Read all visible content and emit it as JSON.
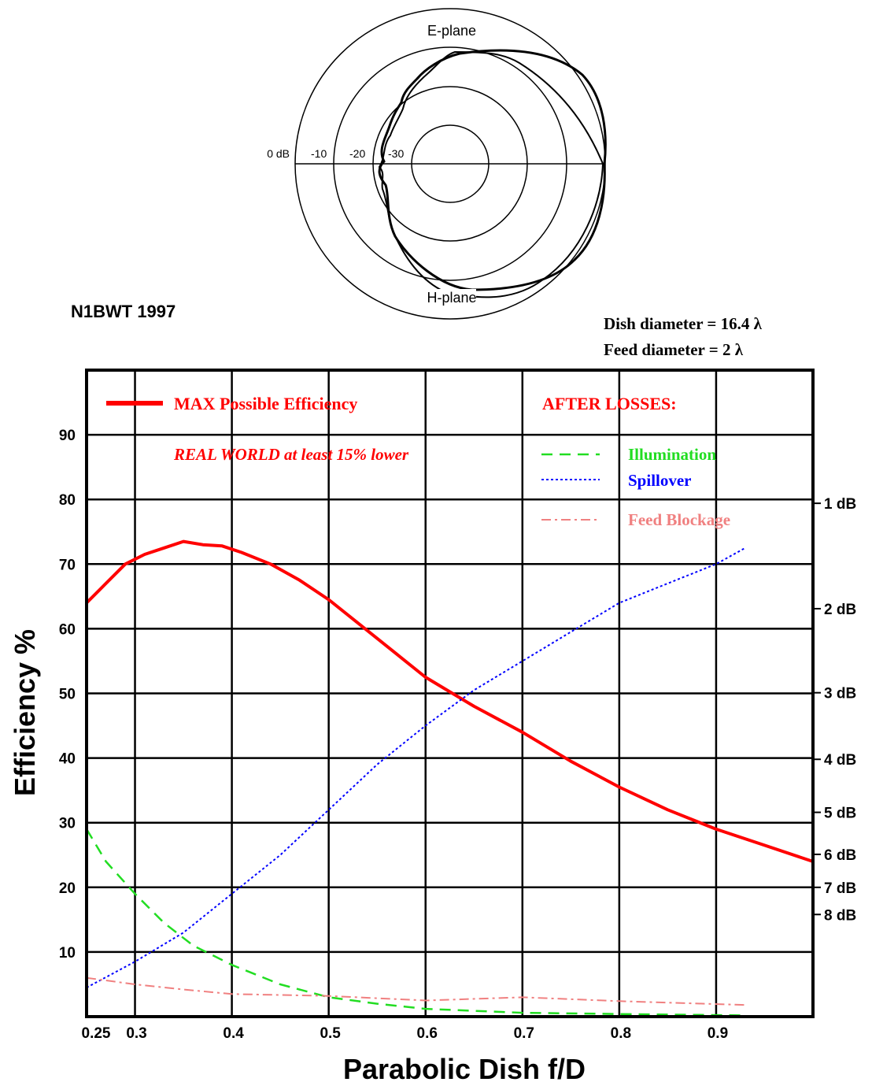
{
  "polar": {
    "e_plane_label": "E-plane",
    "h_plane_label": "H-plane",
    "ring_labels": [
      "0 dB",
      "-10",
      "-20",
      "-30"
    ]
  },
  "credit": "N1BWT 1997",
  "dish_diameter": "Dish diameter = 16.4 λ",
  "feed_diameter": "Feed diameter = 2 λ",
  "legend": {
    "max_label": "MAX Possible Efficiency",
    "real_world_note": "REAL WORLD at least 15% lower",
    "after_losses": "AFTER LOSSES:",
    "illumination": "Illumination",
    "spillover": "Spillover",
    "feed_blockage": "Feed Blockage"
  },
  "colors": {
    "max": "#ff0000",
    "illumination": "#22dd22",
    "spillover": "#0000ff",
    "feed_blockage": "#f08080",
    "grid": "#000000"
  },
  "chart_data": {
    "type": "line",
    "xlabel": "Parabolic Dish f/D",
    "ylabel": "Efficiency %",
    "xlim": [
      0.25,
      1.0
    ],
    "ylim": [
      0,
      100
    ],
    "x_ticks": [
      {
        "v": 0.25,
        "label": "0.25"
      },
      {
        "v": 0.3,
        "label": "0.3"
      },
      {
        "v": 0.4,
        "label": "0.4"
      },
      {
        "v": 0.5,
        "label": "0.5"
      },
      {
        "v": 0.6,
        "label": "0.6"
      },
      {
        "v": 0.7,
        "label": "0.7"
      },
      {
        "v": 0.8,
        "label": "0.8"
      },
      {
        "v": 0.9,
        "label": "0.9"
      }
    ],
    "y_ticks": [
      10,
      20,
      30,
      40,
      50,
      60,
      70,
      80,
      90
    ],
    "db_ticks": [
      {
        "v": 79.4,
        "label": "1 dB"
      },
      {
        "v": 63.1,
        "label": "2 dB"
      },
      {
        "v": 50.1,
        "label": "3 dB"
      },
      {
        "v": 39.8,
        "label": "4 dB"
      },
      {
        "v": 31.6,
        "label": "5 dB"
      },
      {
        "v": 25.1,
        "label": "6 dB"
      },
      {
        "v": 20.0,
        "label": "7 dB"
      },
      {
        "v": 15.8,
        "label": "8 dB"
      }
    ],
    "series": [
      {
        "name": "MAX Possible Efficiency",
        "style": "solid",
        "x": [
          0.25,
          0.27,
          0.29,
          0.31,
          0.33,
          0.35,
          0.37,
          0.39,
          0.41,
          0.44,
          0.47,
          0.5,
          0.55,
          0.6,
          0.65,
          0.7,
          0.75,
          0.8,
          0.85,
          0.9,
          0.95,
          1.0
        ],
        "y": [
          64,
          67,
          70,
          71.5,
          72.5,
          73.5,
          73,
          72.8,
          71.8,
          70,
          67.5,
          64.5,
          58.5,
          52.5,
          48,
          44,
          39.5,
          35.5,
          32,
          29,
          26.5,
          24
        ]
      },
      {
        "name": "Illumination",
        "style": "dashed",
        "x": [
          0.25,
          0.27,
          0.3,
          0.33,
          0.36,
          0.4,
          0.45,
          0.5,
          0.55,
          0.6,
          0.7,
          0.8,
          0.93
        ],
        "y": [
          29,
          24,
          19,
          14.5,
          11,
          8,
          5,
          3,
          2,
          1.2,
          0.6,
          0.4,
          0.2
        ]
      },
      {
        "name": "Spillover",
        "style": "dotted",
        "x": [
          0.25,
          0.3,
          0.35,
          0.4,
          0.45,
          0.5,
          0.55,
          0.6,
          0.65,
          0.7,
          0.75,
          0.8,
          0.85,
          0.9,
          0.93
        ],
        "y": [
          4.5,
          8.5,
          13,
          19,
          25,
          32,
          39,
          45,
          50.5,
          55,
          59.5,
          64,
          67,
          70,
          72.5
        ]
      },
      {
        "name": "Feed Blockage",
        "style": "dashdot",
        "x": [
          0.25,
          0.3,
          0.35,
          0.4,
          0.5,
          0.6,
          0.7,
          0.8,
          0.93
        ],
        "y": [
          6,
          5,
          4.2,
          3.5,
          3.2,
          2.5,
          3,
          2.4,
          1.8
        ]
      }
    ]
  }
}
